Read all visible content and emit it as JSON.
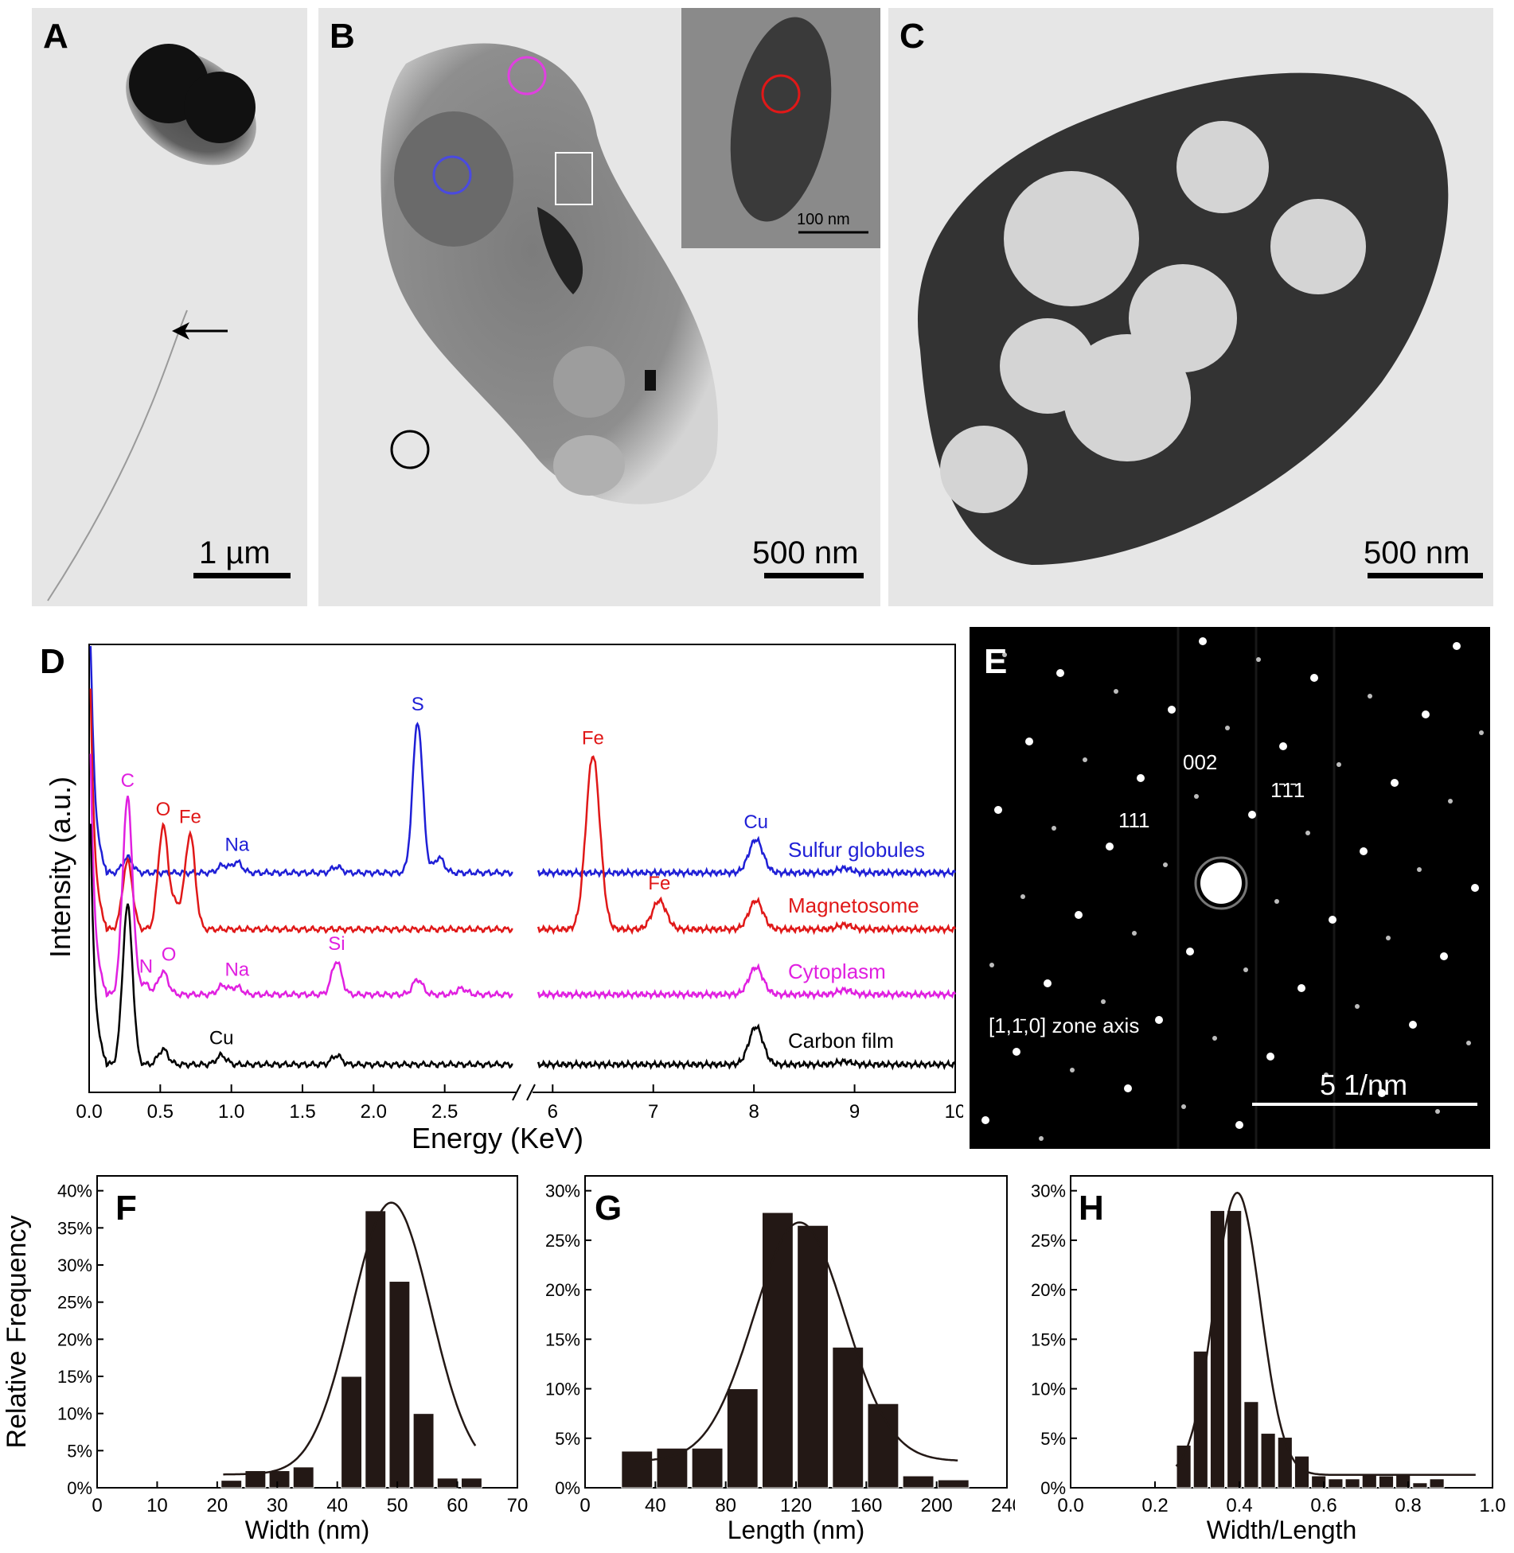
{
  "panels": {
    "A": {
      "label": "A",
      "scale": "1 µm"
    },
    "B": {
      "label": "B",
      "scale": "500 nm",
      "inset_scale": "100 nm"
    },
    "C": {
      "label": "C",
      "scale": "500 nm"
    },
    "D": {
      "label": "D"
    },
    "E": {
      "label": "E",
      "reflections": [
        "002",
        "1̄1̄1",
        "111"
      ],
      "zone_axis": "[1,1̄,0] zone axis",
      "scale": "5 1/nm"
    },
    "F": {
      "label": "F"
    },
    "G": {
      "label": "G"
    },
    "H": {
      "label": "H"
    }
  },
  "colors": {
    "sulfur": "#1f1fd6",
    "magnetosome": "#e01818",
    "cytoplasm": "#e020e0",
    "carbon": "#000000",
    "bar": "#231815"
  },
  "chart_data": [
    {
      "id": "D",
      "type": "line",
      "xlabel": "Energy (KeV)",
      "ylabel": "Intensity (a.u.)",
      "x_ticks_left": [
        "0.0",
        "0.5",
        "1.0",
        "1.5",
        "2.0",
        "2.5"
      ],
      "x_ticks_right": [
        "6",
        "7",
        "8",
        "9",
        "10"
      ],
      "xlim_left": [
        0,
        3
      ],
      "xlim_right": [
        5.8,
        10
      ],
      "x_break": true,
      "series": [
        {
          "name": "Sulfur globules",
          "peaks": [
            [
              0.27,
              0.1
            ],
            [
              0.94,
              0.05
            ],
            [
              1.04,
              0.07
            ],
            [
              1.74,
              0.04
            ],
            [
              2.31,
              1.0
            ],
            [
              2.46,
              0.1
            ],
            [
              8.02,
              0.22
            ],
            [
              8.9,
              0.03
            ]
          ],
          "annotations": [
            {
              "text": "S",
              "x": 2.31
            },
            {
              "text": "Na",
              "x": 1.04
            },
            {
              "text": "Cu",
              "x": 8.02
            }
          ]
        },
        {
          "name": "Magnetosome",
          "peaks": [
            [
              0.27,
              0.45
            ],
            [
              0.52,
              0.68
            ],
            [
              0.61,
              0.15
            ],
            [
              0.71,
              0.63
            ],
            [
              6.4,
              1.15
            ],
            [
              7.06,
              0.19
            ],
            [
              8.02,
              0.19
            ],
            [
              8.9,
              0.03
            ]
          ],
          "annotations": [
            {
              "text": "O",
              "x": 0.52
            },
            {
              "text": "Fe",
              "x": 0.71
            },
            {
              "text": "Fe",
              "x": 6.4
            },
            {
              "text": "Fe",
              "x": 7.06
            }
          ]
        },
        {
          "name": "Cytoplasm",
          "peaks": [
            [
              0.27,
              1.3
            ],
            [
              0.39,
              0.07
            ],
            [
              0.52,
              0.15
            ],
            [
              0.94,
              0.06
            ],
            [
              1.04,
              0.05
            ],
            [
              1.74,
              0.22
            ],
            [
              2.31,
              0.1
            ],
            [
              2.62,
              0.04
            ],
            [
              8.02,
              0.18
            ],
            [
              8.9,
              0.03
            ]
          ],
          "annotations": [
            {
              "text": "C",
              "x": 0.27
            },
            {
              "text": "N",
              "x": 0.4
            },
            {
              "text": "O",
              "x": 0.56
            },
            {
              "text": "Na",
              "x": 1.04
            },
            {
              "text": "Si",
              "x": 1.74
            }
          ]
        },
        {
          "name": "Carbon film",
          "peaks": [
            [
              0.27,
              1.05
            ],
            [
              0.52,
              0.1
            ],
            [
              0.93,
              0.06
            ],
            [
              1.74,
              0.06
            ],
            [
              8.02,
              0.25
            ],
            [
              8.9,
              0.02
            ]
          ],
          "annotations": [
            {
              "text": "Cu",
              "x": 0.93
            }
          ]
        }
      ]
    },
    {
      "id": "F",
      "type": "bar",
      "xlabel": "Width (nm)",
      "ylabel": "Relative Frequency",
      "xlim": [
        0,
        70
      ],
      "ylim": [
        0,
        0.42
      ],
      "x_ticks": [
        "0",
        "10",
        "20",
        "30",
        "40",
        "50",
        "60",
        "70"
      ],
      "y_ticks": [
        "0%",
        "5%",
        "10%",
        "15%",
        "20%",
        "25%",
        "30%",
        "35%",
        "40%"
      ],
      "bin_width": 3.7,
      "bars": [
        [
          22.5,
          0.01
        ],
        [
          26.5,
          0.023
        ],
        [
          30.5,
          0.023
        ],
        [
          34.5,
          0.028
        ],
        [
          38.5,
          0.0
        ],
        [
          42.5,
          0.15
        ],
        [
          46.5,
          0.373
        ],
        [
          50.5,
          0.278
        ],
        [
          54.5,
          0.1
        ],
        [
          58.5,
          0.013
        ],
        [
          62.5,
          0.013
        ]
      ],
      "fit": {
        "mu": 49,
        "sigma": 6.6,
        "amp": 0.384,
        "base": 0.018,
        "x_range": [
          21,
          63
        ]
      }
    },
    {
      "id": "G",
      "type": "bar",
      "xlabel": "Length (nm)",
      "xlim": [
        0,
        240
      ],
      "ylim": [
        0,
        0.315
      ],
      "x_ticks": [
        "0",
        "40",
        "80",
        "120",
        "160",
        "200",
        "240"
      ],
      "y_ticks": [
        "0%",
        "5%",
        "10%",
        "15%",
        "20%",
        "25%",
        "30%"
      ],
      "bin_width": 18.5,
      "bars": [
        [
          30,
          0.037
        ],
        [
          50,
          0.04
        ],
        [
          70,
          0.04
        ],
        [
          90,
          0.1
        ],
        [
          110,
          0.278
        ],
        [
          130,
          0.265
        ],
        [
          150,
          0.142
        ],
        [
          170,
          0.085
        ],
        [
          190,
          0.012
        ],
        [
          210,
          0.008
        ]
      ],
      "fit": {
        "mu": 122,
        "sigma": 26,
        "amp": 0.268,
        "base": 0.027,
        "x_range": [
          28,
          212
        ]
      }
    },
    {
      "id": "H",
      "type": "bar",
      "xlabel": "Width/Length",
      "xlim": [
        0.0,
        1.0
      ],
      "ylim": [
        0,
        0.315
      ],
      "x_ticks": [
        "0.0",
        "0.2",
        "0.4",
        "0.6",
        "0.8",
        "1.0"
      ],
      "y_ticks": [
        "0%",
        "5%",
        "10%",
        "15%",
        "20%",
        "25%",
        "30%"
      ],
      "bin_width": 0.038,
      "bars": [
        [
          0.27,
          0.043
        ],
        [
          0.31,
          0.138
        ],
        [
          0.35,
          0.28
        ],
        [
          0.39,
          0.28
        ],
        [
          0.43,
          0.087
        ],
        [
          0.47,
          0.055
        ],
        [
          0.51,
          0.051
        ],
        [
          0.55,
          0.032
        ],
        [
          0.59,
          0.012
        ],
        [
          0.63,
          0.009
        ],
        [
          0.67,
          0.009
        ],
        [
          0.71,
          0.014
        ],
        [
          0.75,
          0.012
        ],
        [
          0.79,
          0.014
        ],
        [
          0.83,
          0.005
        ],
        [
          0.87,
          0.009
        ]
      ],
      "fit": {
        "mu": 0.395,
        "sigma": 0.055,
        "amp": 0.298,
        "base": 0.013,
        "x_range": [
          0.25,
          0.96
        ]
      }
    }
  ]
}
